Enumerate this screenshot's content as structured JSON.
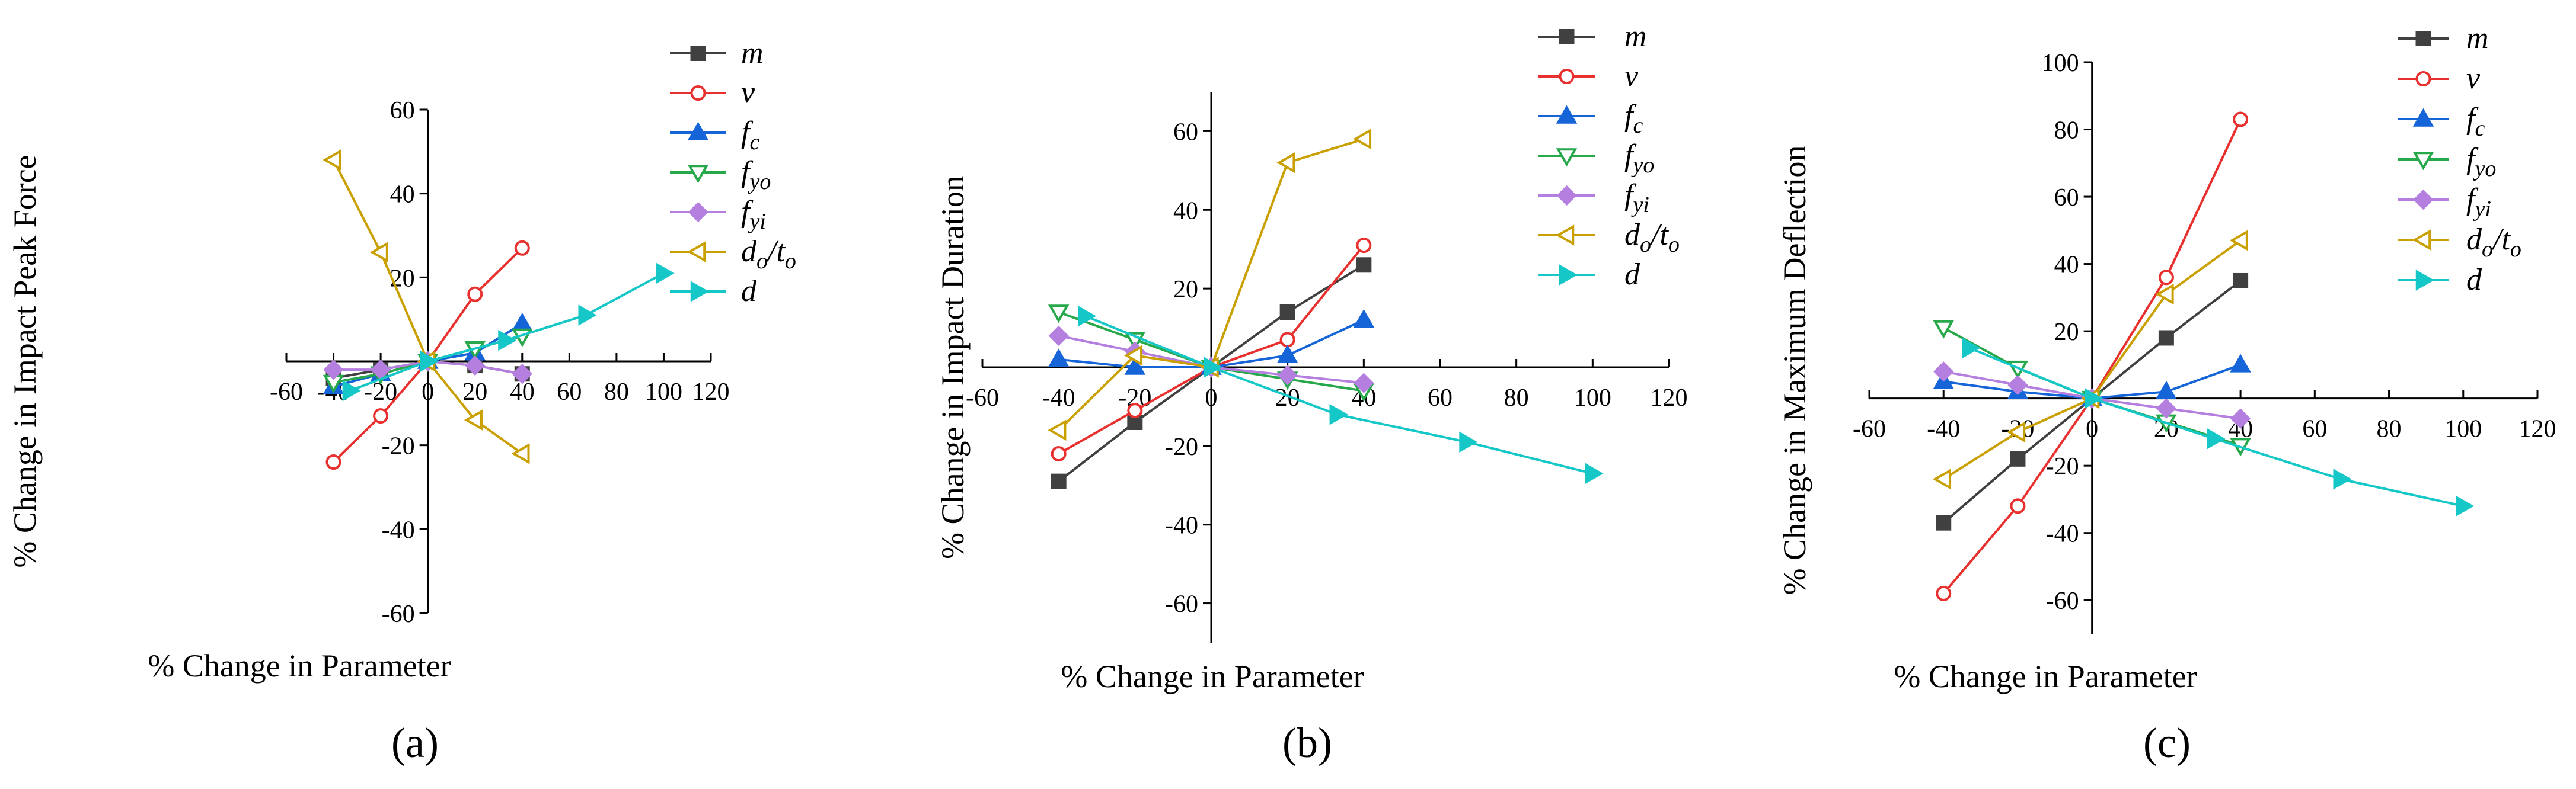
{
  "figure": {
    "legend_items": [
      {
        "main": "m",
        "sub": ""
      },
      {
        "main": "v",
        "sub": ""
      },
      {
        "main": "f",
        "sub": "c"
      },
      {
        "main": "f",
        "sub": "yo"
      },
      {
        "main": "f",
        "sub": "yi"
      },
      {
        "main": "d",
        "sub": "o",
        "mid": "/t",
        "sub2": "o"
      },
      {
        "main": "d",
        "sub": ""
      }
    ]
  },
  "series_styles": [
    {
      "name": "m",
      "color": "#404040",
      "marker": "square",
      "filled": true
    },
    {
      "name": "v",
      "color": "#e8302e",
      "marker": "circle",
      "filled": false
    },
    {
      "name": "fc",
      "color": "#1565d8",
      "marker": "triangle-up",
      "filled": true
    },
    {
      "name": "fyo",
      "color": "#27a84a",
      "marker": "triangle-down",
      "filled": false
    },
    {
      "name": "fyi",
      "color": "#b57fe0",
      "marker": "diamond",
      "filled": true
    },
    {
      "name": "do/to",
      "color": "#c9a000",
      "marker": "triangle-left",
      "filled": false
    },
    {
      "name": "d",
      "color": "#16c7c7",
      "marker": "triangle-right",
      "filled": true
    }
  ],
  "chart_data": [
    {
      "type": "line",
      "panel_label": "(a)",
      "title": "",
      "xlabel": "% Change in Parameter",
      "ylabel": "% Change in Impact Peak Force",
      "xlim": [
        -60,
        120
      ],
      "ylim": [
        -60,
        60
      ],
      "x_ticks": [
        -60,
        -40,
        -20,
        0,
        20,
        40,
        60,
        80,
        100,
        120
      ],
      "y_ticks": [
        -60,
        -40,
        -20,
        20,
        40,
        60
      ],
      "series": [
        {
          "name": "m",
          "x": [
            -40,
            -20,
            0,
            20,
            40
          ],
          "y": [
            -4,
            -2,
            0,
            -1,
            -3
          ]
        },
        {
          "name": "v",
          "x": [
            -40,
            -20,
            0,
            20,
            40
          ],
          "y": [
            -24,
            -13,
            0,
            16,
            27
          ]
        },
        {
          "name": "fc",
          "x": [
            -40,
            -20,
            0,
            20,
            40
          ],
          "y": [
            -6,
            -3,
            0,
            2,
            9
          ]
        },
        {
          "name": "fyo",
          "x": [
            -40,
            -20,
            0,
            20,
            40
          ],
          "y": [
            -5,
            -3,
            0,
            3,
            6
          ]
        },
        {
          "name": "fyi",
          "x": [
            -40,
            -20,
            0,
            20,
            40
          ],
          "y": [
            -2,
            -2,
            0,
            -1,
            -3
          ]
        },
        {
          "name": "do/to",
          "x": [
            -40,
            -20,
            0,
            20,
            40
          ],
          "y": [
            48,
            26,
            0,
            -14,
            -22
          ]
        },
        {
          "name": "d",
          "x": [
            -33,
            0,
            33,
            67,
            100
          ],
          "y": [
            -7,
            0,
            5,
            11,
            21
          ]
        }
      ]
    },
    {
      "type": "line",
      "panel_label": "(b)",
      "title": "",
      "xlabel": "% Change in Parameter",
      "ylabel": "% Change in Impact Duration",
      "xlim": [
        -60,
        120
      ],
      "ylim": [
        -70,
        70
      ],
      "x_ticks": [
        -60,
        -40,
        -20,
        0,
        20,
        40,
        60,
        80,
        100,
        120
      ],
      "y_ticks": [
        -60,
        -40,
        -20,
        20,
        40,
        60
      ],
      "series": [
        {
          "name": "m",
          "x": [
            -40,
            -20,
            0,
            20,
            40
          ],
          "y": [
            -29,
            -14,
            0,
            14,
            26
          ]
        },
        {
          "name": "v",
          "x": [
            -40,
            -20,
            0,
            20,
            40
          ],
          "y": [
            -22,
            -11,
            0,
            7,
            31
          ]
        },
        {
          "name": "fc",
          "x": [
            -40,
            -20,
            0,
            20,
            40
          ],
          "y": [
            2,
            0,
            0,
            3,
            12
          ]
        },
        {
          "name": "fyo",
          "x": [
            -40,
            -20,
            0,
            20,
            40
          ],
          "y": [
            14,
            7,
            0,
            -3,
            -6
          ]
        },
        {
          "name": "fyi",
          "x": [
            -40,
            -20,
            0,
            20,
            40
          ],
          "y": [
            8,
            4,
            0,
            -2,
            -4
          ]
        },
        {
          "name": "do/to",
          "x": [
            -40,
            -20,
            0,
            20,
            40
          ],
          "y": [
            -16,
            3,
            0,
            52,
            58
          ]
        },
        {
          "name": "d",
          "x": [
            -33,
            0,
            33,
            67,
            100
          ],
          "y": [
            13,
            0,
            -12,
            -19,
            -27
          ]
        }
      ]
    },
    {
      "type": "line",
      "panel_label": "(c)",
      "title": "",
      "xlabel": "% Change in Parameter",
      "ylabel": "% Change in Maximum Deflection",
      "xlim": [
        -60,
        120
      ],
      "ylim": [
        -70,
        100
      ],
      "x_ticks": [
        -60,
        -40,
        -20,
        0,
        20,
        40,
        60,
        80,
        100,
        120
      ],
      "y_ticks": [
        -60,
        -40,
        -20,
        20,
        40,
        60,
        80,
        100
      ],
      "series": [
        {
          "name": "m",
          "x": [
            -40,
            -20,
            0,
            20,
            40
          ],
          "y": [
            -37,
            -18,
            0,
            18,
            35
          ]
        },
        {
          "name": "v",
          "x": [
            -40,
            -20,
            0,
            20,
            40
          ],
          "y": [
            -58,
            -32,
            0,
            36,
            83
          ]
        },
        {
          "name": "fc",
          "x": [
            -40,
            -20,
            0,
            20,
            40
          ],
          "y": [
            5,
            2,
            0,
            2,
            10
          ]
        },
        {
          "name": "fyo",
          "x": [
            -40,
            -20,
            0,
            20,
            40
          ],
          "y": [
            21,
            9,
            0,
            -7,
            -14
          ]
        },
        {
          "name": "fyi",
          "x": [
            -40,
            -20,
            0,
            20,
            40
          ],
          "y": [
            8,
            4,
            0,
            -3,
            -6
          ]
        },
        {
          "name": "do/to",
          "x": [
            -40,
            -20,
            0,
            20,
            40
          ],
          "y": [
            -24,
            -10,
            0,
            31,
            47
          ]
        },
        {
          "name": "d",
          "x": [
            -33,
            0,
            33,
            67,
            100
          ],
          "y": [
            15,
            0,
            -12,
            -24,
            -32
          ]
        }
      ]
    }
  ]
}
